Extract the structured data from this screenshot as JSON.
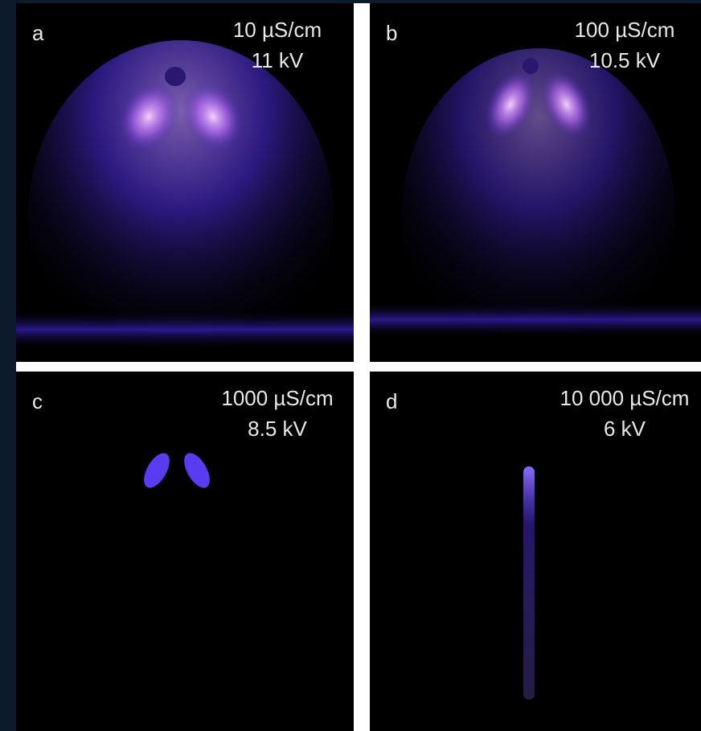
{
  "panels": [
    {
      "label": "a",
      "conductivity": "10 µS/cm",
      "voltage": "11 kV"
    },
    {
      "label": "b",
      "conductivity": "100 µS/cm",
      "voltage": "10.5 kV"
    },
    {
      "label": "c",
      "conductivity": "1000 µS/cm",
      "voltage": "8.5 kV"
    },
    {
      "label": "d",
      "conductivity": "10 000 µS/cm",
      "voltage": "6 kV"
    }
  ]
}
